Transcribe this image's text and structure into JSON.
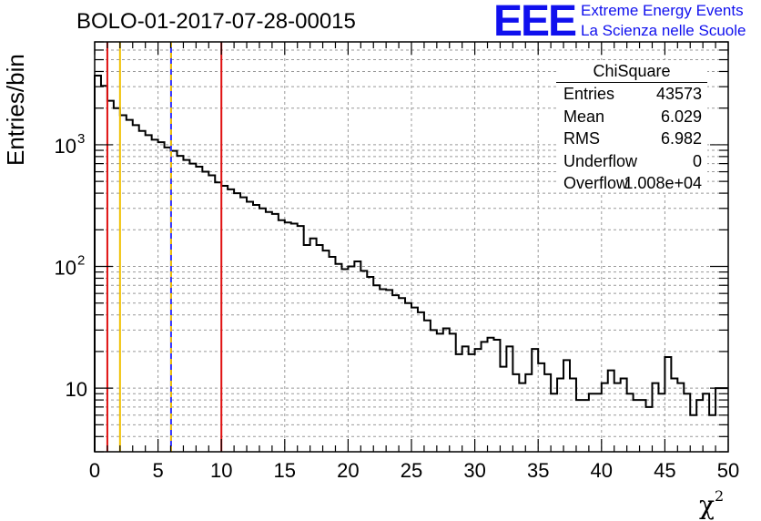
{
  "header": {
    "title": "BOLO-01-2017-07-28-00015",
    "logo": "EEE",
    "logo_line1": "Extreme Energy Events",
    "logo_line2": "La Scienza nelle Scuole"
  },
  "stats": {
    "title": "ChiSquare",
    "rows": [
      {
        "key": "Entries",
        "value": "43573"
      },
      {
        "key": "Mean",
        "value": "6.029"
      },
      {
        "key": "RMS",
        "value": "6.982"
      },
      {
        "key": "Underflow",
        "value": "0"
      },
      {
        "key": "Overflow",
        "value": "1.008e+04"
      }
    ]
  },
  "colors": {
    "red_line": "#e01010",
    "yellow_line": "#f0c000",
    "blue_dash": "#3030ff",
    "histogram": "#000000",
    "grid": "#999999"
  },
  "chart_data": {
    "type": "histogram",
    "xlabel": "χ",
    "xlabel_sup": "2",
    "ylabel": "Entries/bin",
    "xlim": [
      0,
      50
    ],
    "ylim": [
      3,
      7000
    ],
    "yscale": "log",
    "grid": true,
    "x_ticks": [
      0,
      5,
      10,
      15,
      20,
      25,
      30,
      35,
      40,
      45,
      50
    ],
    "y_tick_labels": [
      {
        "value": 10,
        "label": "10"
      },
      {
        "value": 100,
        "label": "10",
        "sup": "2"
      },
      {
        "value": 1000,
        "label": "10",
        "sup": "3"
      }
    ],
    "bin_width": 0.5,
    "bin_start": 0,
    "values": [
      3700,
      3050,
      2300,
      2000,
      1750,
      1600,
      1450,
      1300,
      1200,
      1100,
      1050,
      950,
      890,
      810,
      750,
      700,
      660,
      600,
      560,
      490,
      460,
      430,
      400,
      370,
      340,
      320,
      300,
      280,
      270,
      240,
      230,
      225,
      215,
      150,
      170,
      150,
      135,
      120,
      105,
      95,
      100,
      110,
      92,
      82,
      70,
      65,
      64,
      58,
      55,
      50,
      46,
      42,
      36,
      30,
      28,
      31,
      28,
      19,
      22,
      19,
      21,
      24,
      26,
      25,
      15,
      22,
      13,
      11,
      13,
      21,
      16,
      13,
      9,
      12,
      17,
      12,
      8,
      8,
      9,
      9,
      11,
      14,
      11,
      12,
      9,
      8,
      8,
      7,
      11,
      9,
      18,
      12,
      11,
      9,
      6,
      8,
      9,
      6,
      10,
      10
    ],
    "vertical_lines": [
      {
        "x": 1.0,
        "color": "red",
        "style": "solid"
      },
      {
        "x": 2.0,
        "color": "yellow",
        "style": "solid"
      },
      {
        "x": 6.029,
        "color": "yellow",
        "style": "dashed"
      },
      {
        "x": 10.0,
        "color": "red",
        "style": "solid"
      }
    ]
  }
}
